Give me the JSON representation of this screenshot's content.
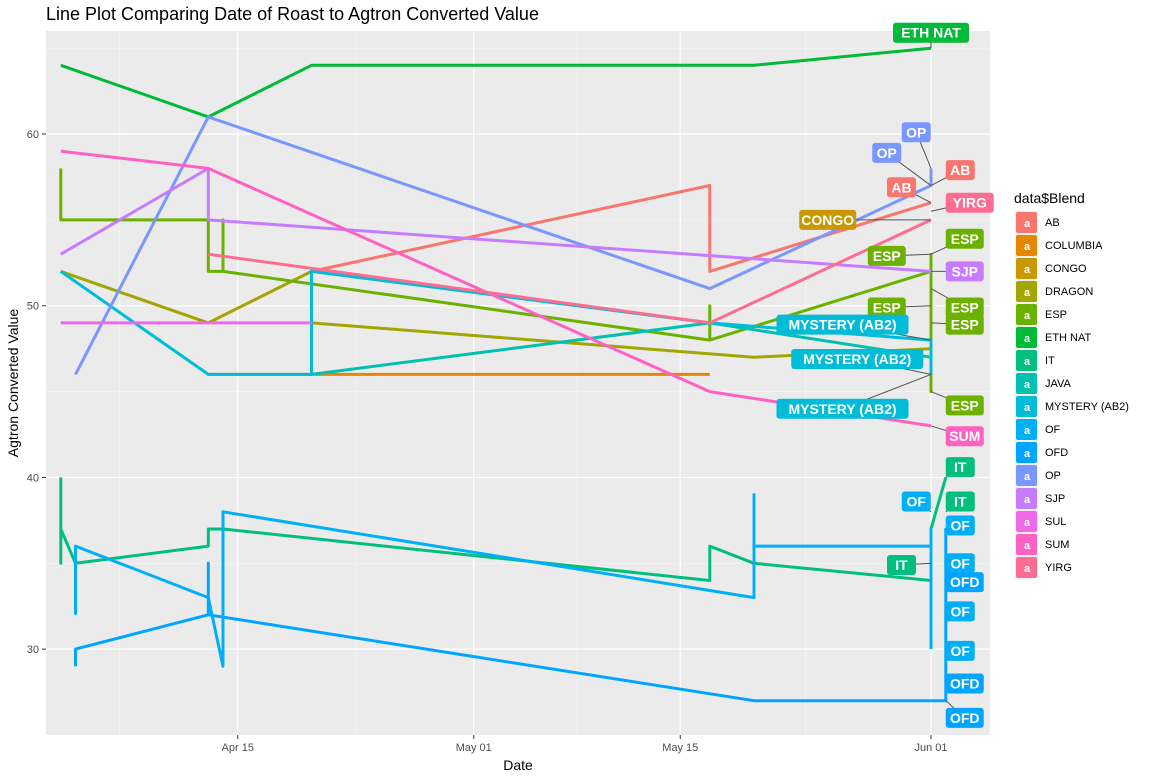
{
  "chart_data": {
    "type": "line",
    "title": "Line Plot Comparing Date of Roast to Agtron Converted Value",
    "xlabel": "Date",
    "ylabel": "Agtron Converted Value",
    "x_ticks": [
      "2021-04-15",
      "2021-05-01",
      "2021-05-15",
      "2021-06-01"
    ],
    "x_tick_labels": [
      "Apr 15",
      "May 01",
      "May 15",
      "Jun 01"
    ],
    "xlim": [
      "2021-04-02",
      "2021-06-05"
    ],
    "y_ticks": [
      30,
      40,
      50,
      60
    ],
    "ylim": [
      25,
      66
    ],
    "grid": true,
    "legend": {
      "title": "data$Blend",
      "position": "right",
      "key_letter": "a"
    },
    "series": [
      {
        "name": "AB",
        "color": "#F8766D",
        "points": [
          [
            "2021-04-20",
            52
          ],
          [
            "2021-05-17",
            57
          ],
          [
            "2021-05-17",
            52
          ],
          [
            "2021-06-01",
            56
          ]
        ]
      },
      {
        "name": "COLUMBIA",
        "color": "#E58700",
        "points": [
          [
            "2021-04-13",
            46
          ],
          [
            "2021-05-17",
            46
          ]
        ]
      },
      {
        "name": "CONGO",
        "color": "#C99800",
        "points": [
          [
            "2021-04-20",
            55
          ]
        ]
      },
      {
        "name": "DRAGON",
        "color": "#A3A500",
        "points": [
          [
            "2021-04-03",
            52
          ],
          [
            "2021-04-13",
            49
          ],
          [
            "2021-04-20",
            52
          ],
          [
            "2021-04-20",
            49
          ],
          [
            "2021-05-20",
            47
          ],
          [
            "2021-06-01",
            47.5
          ]
        ]
      },
      {
        "name": "ESP",
        "color": "#6BB100",
        "points": [
          [
            "2021-04-03",
            58
          ],
          [
            "2021-04-03",
            55
          ],
          [
            "2021-04-13",
            55
          ],
          [
            "2021-04-13",
            52
          ],
          [
            "2021-04-14",
            52
          ],
          [
            "2021-04-14",
            55
          ],
          [
            "2021-04-14",
            52
          ],
          [
            "2021-05-17",
            48
          ],
          [
            "2021-05-17",
            50
          ],
          [
            "2021-05-17",
            48
          ],
          [
            "2021-06-01",
            52
          ],
          [
            "2021-06-01",
            53
          ],
          [
            "2021-06-01",
            49
          ],
          [
            "2021-06-01",
            51
          ],
          [
            "2021-06-01",
            45
          ],
          [
            "2021-06-01",
            48
          ]
        ]
      },
      {
        "name": "ETH NAT",
        "color": "#00BA38",
        "points": [
          [
            "2021-04-03",
            64
          ],
          [
            "2021-04-13",
            61
          ],
          [
            "2021-04-20",
            64
          ],
          [
            "2021-05-20",
            64
          ],
          [
            "2021-06-01",
            65
          ]
        ]
      },
      {
        "name": "IT",
        "color": "#00BF7D",
        "points": [
          [
            "2021-04-03",
            40
          ],
          [
            "2021-04-03",
            35
          ],
          [
            "2021-04-03",
            37
          ],
          [
            "2021-04-04",
            35
          ],
          [
            "2021-04-13",
            36
          ],
          [
            "2021-04-13",
            37
          ],
          [
            "2021-04-14",
            37
          ],
          [
            "2021-05-17",
            34
          ],
          [
            "2021-05-17",
            36
          ],
          [
            "2021-05-20",
            35
          ],
          [
            "2021-06-01",
            34
          ],
          [
            "2021-06-01",
            37
          ],
          [
            "2021-06-02",
            40
          ]
        ]
      },
      {
        "name": "JAVA",
        "color": "#00C0AF",
        "points": [
          [
            "2021-04-20",
            46
          ],
          [
            "2021-05-17",
            49
          ],
          [
            "2021-06-01",
            47
          ]
        ]
      },
      {
        "name": "MYSTERY (AB2)",
        "color": "#00BCD8",
        "points": [
          [
            "2021-04-03",
            52
          ],
          [
            "2021-04-13",
            46
          ],
          [
            "2021-04-20",
            46
          ],
          [
            "2021-04-20",
            52
          ],
          [
            "2021-05-17",
            49
          ],
          [
            "2021-06-01",
            48
          ],
          [
            "2021-06-01",
            46
          ]
        ]
      },
      {
        "name": "OF",
        "color": "#00B0F6",
        "points": [
          [
            "2021-04-04",
            32
          ],
          [
            "2021-04-04",
            36
          ],
          [
            "2021-04-13",
            33
          ],
          [
            "2021-04-14",
            29
          ],
          [
            "2021-04-14",
            38
          ],
          [
            "2021-05-20",
            33
          ],
          [
            "2021-05-20",
            39
          ],
          [
            "2021-05-20",
            36
          ],
          [
            "2021-06-01",
            36
          ],
          [
            "2021-06-01",
            37
          ],
          [
            "2021-06-01",
            30
          ]
        ]
      },
      {
        "name": "OFD",
        "color": "#00A5FF",
        "points": [
          [
            "2021-04-04",
            29
          ],
          [
            "2021-04-04",
            30
          ],
          [
            "2021-04-13",
            32
          ],
          [
            "2021-04-13",
            35
          ],
          [
            "2021-04-13",
            32
          ],
          [
            "2021-05-20",
            27
          ],
          [
            "2021-06-02",
            27
          ],
          [
            "2021-06-02",
            37
          ],
          [
            "2021-06-02",
            29
          ]
        ]
      },
      {
        "name": "OP",
        "color": "#7997FF",
        "points": [
          [
            "2021-04-04",
            46
          ],
          [
            "2021-04-13",
            61
          ],
          [
            "2021-05-17",
            51
          ],
          [
            "2021-06-01",
            57
          ],
          [
            "2021-06-01",
            58
          ]
        ]
      },
      {
        "name": "SJP",
        "color": "#C77CFF",
        "points": [
          [
            "2021-04-03",
            53
          ],
          [
            "2021-04-13",
            58
          ],
          [
            "2021-04-13",
            55
          ],
          [
            "2021-06-01",
            52
          ]
        ]
      },
      {
        "name": "SUL",
        "color": "#EF67EB",
        "points": [
          [
            "2021-04-03",
            49
          ],
          [
            "2021-04-20",
            49
          ]
        ]
      },
      {
        "name": "SUM",
        "color": "#FF61C3",
        "points": [
          [
            "2021-04-03",
            59
          ],
          [
            "2021-04-13",
            58
          ],
          [
            "2021-05-17",
            45
          ],
          [
            "2021-06-01",
            43
          ]
        ]
      },
      {
        "name": "YIRG",
        "color": "#FF6C91",
        "points": [
          [
            "2021-04-13",
            53
          ],
          [
            "2021-05-17",
            49
          ],
          [
            "2021-06-01",
            55
          ]
        ]
      }
    ],
    "end_labels": [
      {
        "text": "ETH NAT",
        "series": "ETH NAT",
        "target": [
          "2021-06-01",
          65
        ],
        "label_at": [
          "2021-06-01",
          65.9
        ],
        "align": "center"
      },
      {
        "text": "OP",
        "series": "OP",
        "target": [
          "2021-06-01",
          58
        ],
        "label_at": [
          "2021-05-31",
          60.1
        ],
        "align": "center"
      },
      {
        "text": "OP",
        "series": "OP",
        "target": [
          "2021-06-01",
          57
        ],
        "label_at": [
          "2021-05-29",
          58.9
        ],
        "align": "center"
      },
      {
        "text": "AB",
        "series": "AB",
        "target": [
          "2021-06-01",
          57
        ],
        "label_at": [
          "2021-06-02",
          57.9
        ],
        "align": "left"
      },
      {
        "text": "AB",
        "series": "AB",
        "target": [
          "2021-06-01",
          56
        ],
        "label_at": [
          "2021-05-30",
          56.9
        ],
        "align": "center"
      },
      {
        "text": "YIRG",
        "series": "YIRG",
        "target": [
          "2021-06-01",
          55.5
        ],
        "label_at": [
          "2021-06-02",
          56.0
        ],
        "align": "left"
      },
      {
        "text": "CONGO",
        "series": "CONGO",
        "target": [
          "2021-06-01",
          55
        ],
        "label_at": [
          "2021-05-25",
          55.0
        ],
        "align": "center"
      },
      {
        "text": "ESP",
        "series": "ESP",
        "target": [
          "2021-06-01",
          53
        ],
        "label_at": [
          "2021-06-02",
          53.9
        ],
        "align": "left"
      },
      {
        "text": "ESP",
        "series": "ESP",
        "target": [
          "2021-06-01",
          53
        ],
        "label_at": [
          "2021-05-29",
          52.9
        ],
        "align": "center"
      },
      {
        "text": "SJP",
        "series": "SJP",
        "target": [
          "2021-06-01",
          52
        ],
        "label_at": [
          "2021-06-02",
          52.0
        ],
        "align": "left"
      },
      {
        "text": "ESP",
        "series": "ESP",
        "target": [
          "2021-06-01",
          51
        ],
        "label_at": [
          "2021-06-02",
          49.9
        ],
        "align": "left"
      },
      {
        "text": "ESP",
        "series": "ESP",
        "target": [
          "2021-06-01",
          50
        ],
        "label_at": [
          "2021-05-29",
          49.9
        ],
        "align": "center"
      },
      {
        "text": "ESP",
        "series": "ESP",
        "target": [
          "2021-06-01",
          49
        ],
        "label_at": [
          "2021-06-02",
          48.9
        ],
        "align": "left"
      },
      {
        "text": "MYSTERY (AB2)",
        "series": "MYSTERY (AB2)",
        "target": [
          "2021-06-01",
          48
        ],
        "label_at": [
          "2021-05-26",
          48.9
        ],
        "align": "center"
      },
      {
        "text": "MYSTERY (AB2)",
        "series": "MYSTERY (AB2)",
        "target": [
          "2021-06-01",
          46
        ],
        "label_at": [
          "2021-05-27",
          46.9
        ],
        "align": "center"
      },
      {
        "text": "ESP",
        "series": "ESP",
        "target": [
          "2021-06-01",
          45
        ],
        "label_at": [
          "2021-06-02",
          44.2
        ],
        "align": "left"
      },
      {
        "text": "MYSTERY (AB2)",
        "series": "MYSTERY (AB2)",
        "target": [
          "2021-06-01",
          46
        ],
        "label_at": [
          "2021-05-26",
          44.0
        ],
        "align": "center"
      },
      {
        "text": "SUM",
        "series": "SUM",
        "target": [
          "2021-06-01",
          43
        ],
        "label_at": [
          "2021-06-02",
          42.4
        ],
        "align": "left"
      },
      {
        "text": "IT",
        "series": "IT",
        "target": [
          "2021-06-02",
          40
        ],
        "label_at": [
          "2021-06-02",
          40.6
        ],
        "align": "left"
      },
      {
        "text": "OF",
        "series": "OF",
        "target": [
          "2021-06-01",
          38
        ],
        "label_at": [
          "2021-05-31",
          38.6
        ],
        "align": "center"
      },
      {
        "text": "IT",
        "series": "IT",
        "target": [
          "2021-06-02",
          38
        ],
        "label_at": [
          "2021-06-02",
          38.6
        ],
        "align": "left"
      },
      {
        "text": "OF",
        "series": "OF",
        "target": [
          "2021-06-02",
          37
        ],
        "label_at": [
          "2021-06-02",
          37.2
        ],
        "align": "left"
      },
      {
        "text": "IT",
        "series": "IT",
        "target": [
          "2021-06-01",
          35
        ],
        "label_at": [
          "2021-05-30",
          34.9
        ],
        "align": "center"
      },
      {
        "text": "OF",
        "series": "OF",
        "target": [
          "2021-06-02",
          35
        ],
        "label_at": [
          "2021-06-02",
          35.0
        ],
        "align": "left"
      },
      {
        "text": "OFD",
        "series": "OFD",
        "target": [
          "2021-06-02",
          34
        ],
        "label_at": [
          "2021-06-02",
          33.9
        ],
        "align": "left"
      },
      {
        "text": "OF",
        "series": "OF",
        "target": [
          "2021-06-02",
          32
        ],
        "label_at": [
          "2021-06-02",
          32.2
        ],
        "align": "left"
      },
      {
        "text": "OF",
        "series": "OF",
        "target": [
          "2021-06-02",
          30
        ],
        "label_at": [
          "2021-06-02",
          29.9
        ],
        "align": "left"
      },
      {
        "text": "OFD",
        "series": "OFD",
        "target": [
          "2021-06-02",
          28
        ],
        "label_at": [
          "2021-06-02",
          28.0
        ],
        "align": "left"
      },
      {
        "text": "OFD",
        "series": "OFD",
        "target": [
          "2021-06-02",
          27
        ],
        "label_at": [
          "2021-06-02",
          26.0
        ],
        "align": "left"
      }
    ]
  }
}
